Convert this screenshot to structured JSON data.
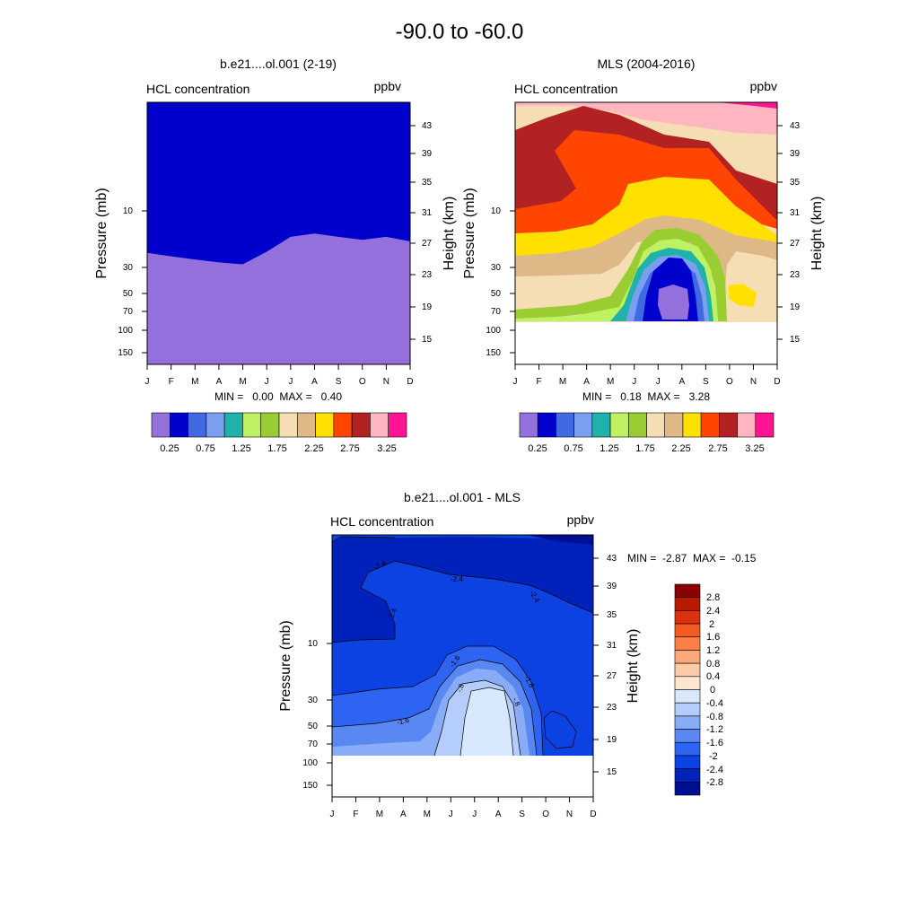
{
  "figure": {
    "main_title": "-90.0 to -60.0"
  },
  "chart_data": [
    {
      "type": "heatmap",
      "title": "b.e21....ol.001 (2-19)",
      "left_header": "HCL concentration",
      "right_header": "ppbv",
      "ylabel": "Pressure (mb)",
      "y2label": "Height (km)",
      "x_ticks": [
        "J",
        "F",
        "M",
        "A",
        "M",
        "J",
        "J",
        "A",
        "S",
        "O",
        "N",
        "D"
      ],
      "y_ticks": [
        "10",
        "30",
        "50",
        "70",
        "100",
        "150"
      ],
      "y2_ticks": [
        "43",
        "39",
        "35",
        "31",
        "27",
        "23",
        "19",
        "15"
      ],
      "minmax_text": "MIN =   0.00  MAX =   0.40",
      "colorbar_labels": [
        "0.25",
        "0.75",
        "1.25",
        "1.75",
        "2.25",
        "2.75",
        "3.25"
      ],
      "months": [
        "J",
        "F",
        "M",
        "A",
        "M",
        "J",
        "J",
        "A",
        "S",
        "O",
        "N",
        "D"
      ],
      "boundary_pressure_mb": [
        22.5,
        24,
        25.5,
        27,
        28,
        22,
        16.5,
        15.5,
        16.5,
        17.5,
        16.5,
        18
      ],
      "upper_value_range": "0.25-0.5",
      "lower_value_range": "0-0.25",
      "zlim": [
        0,
        0.4
      ]
    },
    {
      "type": "heatmap",
      "title": "MLS (2004-2016)",
      "left_header": "HCL concentration",
      "right_header": "ppbv",
      "ylabel": "Pressure (mb)",
      "y2label": "Height (km)",
      "x_ticks": [
        "J",
        "F",
        "M",
        "A",
        "M",
        "J",
        "J",
        "A",
        "S",
        "O",
        "N",
        "D"
      ],
      "y_ticks": [
        "10",
        "30",
        "50",
        "70",
        "100",
        "150"
      ],
      "y2_ticks": [
        "43",
        "39",
        "35",
        "31",
        "27",
        "23",
        "19",
        "15"
      ],
      "minmax_text": "MIN =   0.18  MAX =   3.28",
      "colorbar_labels": [
        "0.25",
        "0.75",
        "1.25",
        "1.75",
        "2.25",
        "2.75",
        "3.25"
      ],
      "data_bottom_mb": 85,
      "zlim": [
        0.18,
        3.28
      ]
    },
    {
      "type": "heatmap",
      "title": "b.e21....ol.001 - MLS",
      "left_header": "HCL concentration",
      "right_header": "ppbv",
      "ylabel": "Pressure (mb)",
      "y2label": "Height (km)",
      "x_ticks": [
        "J",
        "F",
        "M",
        "A",
        "M",
        "J",
        "J",
        "A",
        "S",
        "O",
        "N",
        "D"
      ],
      "y_ticks": [
        "10",
        "30",
        "50",
        "70",
        "100",
        "150"
      ],
      "y2_ticks": [
        "43",
        "39",
        "35",
        "31",
        "27",
        "23",
        "19",
        "15"
      ],
      "minmax_text": "MIN =  -2.87  MAX =  -0.15",
      "colorbar_labels": [
        "2.8",
        "2.4",
        "2",
        "1.6",
        "1.2",
        "0.8",
        "0.4",
        "0",
        "-0.4",
        "-0.8",
        "-1.2",
        "-1.6",
        "-2",
        "-2.4",
        "-2.8"
      ],
      "contour_labels": [
        "-2.4",
        "-2.4",
        "-2.4",
        "-2.4",
        "-1.6",
        "-1.6",
        "-1.6",
        "-.8",
        "-.8"
      ],
      "data_bottom_mb": 85,
      "zlim": [
        -2.87,
        -0.15
      ]
    }
  ],
  "colors": {
    "abs_scale": [
      "#9370db",
      "#0000cd",
      "#4169e1",
      "#7b9ff0",
      "#20b2aa",
      "#bff262",
      "#9acd32",
      "#f5deb3",
      "#deb887",
      "#ffe000",
      "#ff4500",
      "#b22222",
      "#ffb6c1",
      "#ff1493"
    ],
    "diff_scale": [
      "#8b0000",
      "#b61a00",
      "#dd3010",
      "#f55a20",
      "#fb7f46",
      "#fda878",
      "#fecaa8",
      "#fde6d2",
      "#d8e8fd",
      "#b4cdfa",
      "#88acf5",
      "#5a88f2",
      "#2e64f2",
      "#0c42e2",
      "#0022bb",
      "#000f92"
    ]
  }
}
